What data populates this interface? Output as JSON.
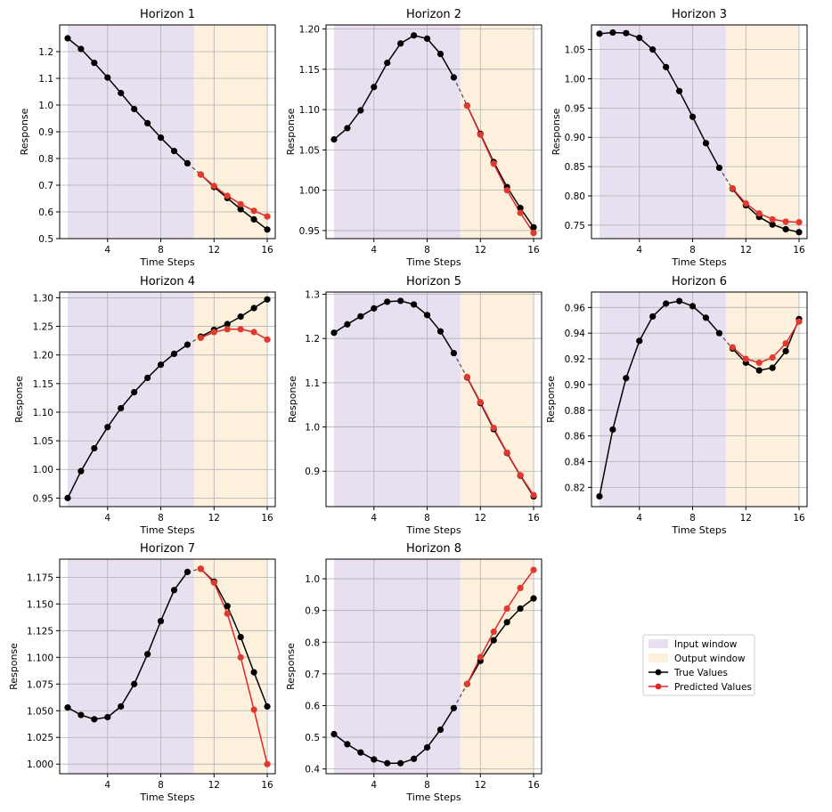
{
  "chart_data": [
    {
      "type": "line",
      "title": "Horizon 1",
      "xlabel": "Time Steps",
      "ylabel": "Response",
      "xlim": [
        0.4,
        16.6
      ],
      "ylim": [
        0.5,
        1.3
      ],
      "xticks": [
        4,
        8,
        12,
        16
      ],
      "yticks": [
        0.5,
        0.6,
        0.7,
        0.8,
        0.9,
        1.0,
        1.1,
        1.2
      ],
      "ytick_labels": [
        "0.5",
        "0.6",
        "0.7",
        "0.8",
        "0.9",
        "1.0",
        "1.1",
        "1.2"
      ],
      "grid": true,
      "input_window": [
        1,
        10.5
      ],
      "output_window": [
        10.5,
        16
      ],
      "x": [
        1,
        2,
        3,
        4,
        5,
        6,
        7,
        8,
        9,
        10,
        11,
        12,
        13,
        14,
        15,
        16
      ],
      "series": [
        {
          "name": "True Values",
          "values": [
            1.25,
            1.21,
            1.158,
            1.103,
            1.045,
            0.985,
            0.932,
            0.878,
            0.828,
            0.782,
            0.74,
            0.693,
            0.652,
            0.61,
            0.572,
            0.534
          ]
        },
        {
          "name": "Predicted Values",
          "values": [
            null,
            null,
            null,
            null,
            null,
            null,
            null,
            null,
            null,
            null,
            0.74,
            0.697,
            0.66,
            0.629,
            0.604,
            0.583
          ]
        }
      ]
    },
    {
      "type": "line",
      "title": "Horizon 2",
      "xlabel": "Time Steps",
      "ylabel": "Response",
      "xlim": [
        0.4,
        16.6
      ],
      "ylim": [
        0.94,
        1.205
      ],
      "xticks": [
        4,
        8,
        12,
        16
      ],
      "yticks": [
        0.95,
        1.0,
        1.05,
        1.1,
        1.15,
        1.2
      ],
      "ytick_labels": [
        "0.95",
        "1.00",
        "1.05",
        "1.10",
        "1.15",
        "1.20"
      ],
      "grid": true,
      "input_window": [
        1,
        10.5
      ],
      "output_window": [
        10.5,
        16
      ],
      "x": [
        1,
        2,
        3,
        4,
        5,
        6,
        7,
        8,
        9,
        10,
        11,
        12,
        13,
        14,
        15,
        16
      ],
      "series": [
        {
          "name": "True Values",
          "values": [
            1.063,
            1.077,
            1.099,
            1.128,
            1.158,
            1.182,
            1.192,
            1.188,
            1.169,
            1.14,
            1.105,
            1.07,
            1.035,
            1.004,
            0.978,
            0.954
          ]
        },
        {
          "name": "Predicted Values",
          "values": [
            null,
            null,
            null,
            null,
            null,
            null,
            null,
            null,
            null,
            null,
            1.105,
            1.069,
            1.033,
            1.0,
            0.972,
            0.947
          ]
        }
      ]
    },
    {
      "type": "line",
      "title": "Horizon 3",
      "xlabel": "Time Steps",
      "ylabel": "Response",
      "xlim": [
        0.4,
        16.6
      ],
      "ylim": [
        0.727,
        1.092
      ],
      "xticks": [
        4,
        8,
        12,
        16
      ],
      "yticks": [
        0.75,
        0.8,
        0.85,
        0.9,
        0.95,
        1.0,
        1.05
      ],
      "ytick_labels": [
        "0.75",
        "0.80",
        "0.85",
        "0.90",
        "0.95",
        "1.00",
        "1.05"
      ],
      "grid": true,
      "input_window": [
        1,
        10.5
      ],
      "output_window": [
        10.5,
        16
      ],
      "x": [
        1,
        2,
        3,
        4,
        5,
        6,
        7,
        8,
        9,
        10,
        11,
        12,
        13,
        14,
        15,
        16
      ],
      "series": [
        {
          "name": "True Values",
          "values": [
            1.077,
            1.079,
            1.078,
            1.07,
            1.05,
            1.02,
            0.979,
            0.935,
            0.89,
            0.848,
            0.812,
            0.784,
            0.764,
            0.751,
            0.743,
            0.738
          ]
        },
        {
          "name": "Predicted Values",
          "values": [
            null,
            null,
            null,
            null,
            null,
            null,
            null,
            null,
            null,
            null,
            0.813,
            0.787,
            0.77,
            0.76,
            0.756,
            0.755
          ]
        }
      ]
    },
    {
      "type": "line",
      "title": "Horizon 4",
      "xlabel": "Time Steps",
      "ylabel": "Response",
      "xlim": [
        0.4,
        16.6
      ],
      "ylim": [
        0.935,
        1.31
      ],
      "xticks": [
        4,
        8,
        12,
        16
      ],
      "yticks": [
        0.95,
        1.0,
        1.05,
        1.1,
        1.15,
        1.2,
        1.25,
        1.3
      ],
      "ytick_labels": [
        "0.95",
        "1.00",
        "1.05",
        "1.10",
        "1.15",
        "1.20",
        "1.25",
        "1.30"
      ],
      "grid": true,
      "input_window": [
        1,
        10.5
      ],
      "output_window": [
        10.5,
        16
      ],
      "x": [
        1,
        2,
        3,
        4,
        5,
        6,
        7,
        8,
        9,
        10,
        11,
        12,
        13,
        14,
        15,
        16
      ],
      "series": [
        {
          "name": "True Values",
          "values": [
            0.95,
            0.997,
            1.037,
            1.074,
            1.107,
            1.135,
            1.16,
            1.183,
            1.202,
            1.218,
            1.232,
            1.244,
            1.254,
            1.267,
            1.282,
            1.297
          ]
        },
        {
          "name": "Predicted Values",
          "values": [
            null,
            null,
            null,
            null,
            null,
            null,
            null,
            null,
            null,
            null,
            1.23,
            1.24,
            1.245,
            1.245,
            1.24,
            1.227
          ]
        }
      ]
    },
    {
      "type": "line",
      "title": "Horizon 5",
      "xlabel": "Time Steps",
      "ylabel": "Response",
      "xlim": [
        0.4,
        16.6
      ],
      "ylim": [
        0.82,
        1.305
      ],
      "xticks": [
        4,
        8,
        12,
        16
      ],
      "yticks": [
        0.9,
        1.0,
        1.1,
        1.2,
        1.3
      ],
      "ytick_labels": [
        "0.9",
        "1.0",
        "1.1",
        "1.2",
        "1.3"
      ],
      "grid": true,
      "input_window": [
        1,
        10.5
      ],
      "output_window": [
        10.5,
        16
      ],
      "x": [
        1,
        2,
        3,
        4,
        5,
        6,
        7,
        8,
        9,
        10,
        11,
        12,
        13,
        14,
        15,
        16
      ],
      "series": [
        {
          "name": "True Values",
          "values": [
            1.213,
            1.232,
            1.25,
            1.268,
            1.283,
            1.285,
            1.277,
            1.253,
            1.216,
            1.167,
            1.112,
            1.054,
            0.995,
            0.941,
            0.89,
            0.843
          ]
        },
        {
          "name": "Predicted Values",
          "values": [
            null,
            null,
            null,
            null,
            null,
            null,
            null,
            null,
            null,
            null,
            1.113,
            1.056,
            0.998,
            0.942,
            0.891,
            0.846
          ]
        }
      ]
    },
    {
      "type": "line",
      "title": "Horizon 6",
      "xlabel": "Time Steps",
      "ylabel": "Response",
      "xlim": [
        0.4,
        16.6
      ],
      "ylim": [
        0.805,
        0.972
      ],
      "xticks": [
        4,
        8,
        12,
        16
      ],
      "yticks": [
        0.82,
        0.84,
        0.86,
        0.88,
        0.9,
        0.92,
        0.94,
        0.96
      ],
      "ytick_labels": [
        "0.82",
        "0.84",
        "0.86",
        "0.88",
        "0.90",
        "0.92",
        "0.94",
        "0.96"
      ],
      "grid": true,
      "input_window": [
        1,
        10.5
      ],
      "output_window": [
        10.5,
        16
      ],
      "x": [
        1,
        2,
        3,
        4,
        5,
        6,
        7,
        8,
        9,
        10,
        11,
        12,
        13,
        14,
        15,
        16
      ],
      "series": [
        {
          "name": "True Values",
          "values": [
            0.813,
            0.865,
            0.905,
            0.934,
            0.953,
            0.963,
            0.965,
            0.961,
            0.952,
            0.94,
            0.928,
            0.917,
            0.911,
            0.913,
            0.926,
            0.951
          ]
        },
        {
          "name": "Predicted Values",
          "values": [
            null,
            null,
            null,
            null,
            null,
            null,
            null,
            null,
            null,
            null,
            0.929,
            0.92,
            0.917,
            0.921,
            0.932,
            0.949
          ]
        }
      ]
    },
    {
      "type": "line",
      "title": "Horizon 7",
      "xlabel": "Time Steps",
      "ylabel": "Response",
      "xlim": [
        0.4,
        16.6
      ],
      "ylim": [
        0.991,
        1.192
      ],
      "xticks": [
        4,
        8,
        12,
        16
      ],
      "yticks": [
        1.0,
        1.025,
        1.05,
        1.075,
        1.1,
        1.125,
        1.15,
        1.175
      ],
      "ytick_labels": [
        "1.000",
        "1.025",
        "1.050",
        "1.075",
        "1.100",
        "1.125",
        "1.150",
        "1.175"
      ],
      "grid": true,
      "input_window": [
        1,
        10.5
      ],
      "output_window": [
        10.5,
        16
      ],
      "x": [
        1,
        2,
        3,
        4,
        5,
        6,
        7,
        8,
        9,
        10,
        11,
        12,
        13,
        14,
        15,
        16
      ],
      "series": [
        {
          "name": "True Values",
          "values": [
            1.053,
            1.046,
            1.042,
            1.044,
            1.054,
            1.075,
            1.103,
            1.134,
            1.163,
            1.18,
            1.183,
            1.171,
            1.148,
            1.119,
            1.086,
            1.054
          ]
        },
        {
          "name": "Predicted Values",
          "values": [
            null,
            null,
            null,
            null,
            null,
            null,
            null,
            null,
            null,
            null,
            1.183,
            1.17,
            1.141,
            1.1,
            1.051,
            1.0
          ]
        }
      ]
    },
    {
      "type": "line",
      "title": "Horizon 8",
      "xlabel": "Time Steps",
      "ylabel": "Response",
      "xlim": [
        0.4,
        16.6
      ],
      "ylim": [
        0.385,
        1.062
      ],
      "xticks": [
        4,
        8,
        12,
        16
      ],
      "yticks": [
        0.4,
        0.5,
        0.6,
        0.7,
        0.8,
        0.9,
        1.0
      ],
      "ytick_labels": [
        "0.4",
        "0.5",
        "0.6",
        "0.7",
        "0.8",
        "0.9",
        "1.0"
      ],
      "grid": true,
      "input_window": [
        1,
        10.5
      ],
      "output_window": [
        10.5,
        16
      ],
      "x": [
        1,
        2,
        3,
        4,
        5,
        6,
        7,
        8,
        9,
        10,
        11,
        12,
        13,
        14,
        15,
        16
      ],
      "series": [
        {
          "name": "True Values",
          "values": [
            0.51,
            0.478,
            0.452,
            0.43,
            0.418,
            0.418,
            0.432,
            0.468,
            0.524,
            0.592,
            0.668,
            0.741,
            0.806,
            0.863,
            0.906,
            0.938
          ]
        },
        {
          "name": "Predicted Values",
          "values": [
            null,
            null,
            null,
            null,
            null,
            null,
            null,
            null,
            null,
            null,
            0.668,
            0.753,
            0.833,
            0.906,
            0.971,
            1.028
          ]
        }
      ]
    }
  ],
  "legend": {
    "placement": "bottom-right (in empty ninth cell)",
    "items": [
      {
        "label": "Input window",
        "kind": "patch",
        "color": "#e8dff0"
      },
      {
        "label": "Output window",
        "kind": "patch",
        "color": "#fdf1de"
      },
      {
        "label": "True Values",
        "kind": "line",
        "color": "#000000"
      },
      {
        "label": "Predicted Values",
        "kind": "line",
        "color": "#e0282b"
      }
    ]
  },
  "colors": {
    "true_line": "#000000",
    "pred_line": "#e0282b",
    "pred_marker": "#e03a2f",
    "input_window": "#e8dff0",
    "output_window": "#fdf1de",
    "grid": "#b0b0b0"
  }
}
